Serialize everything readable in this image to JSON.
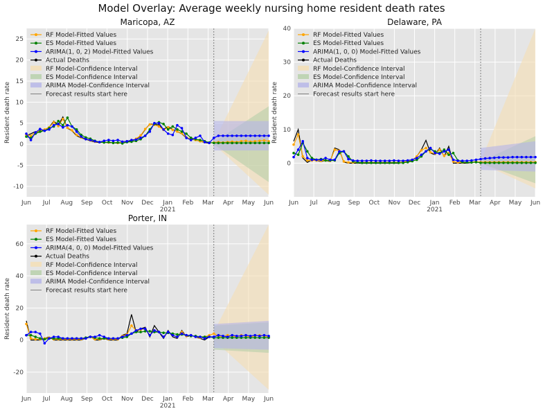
{
  "figure": {
    "title": "Model Overlay: Average weekly nursing home resident death rates"
  },
  "colors": {
    "rf": "#ffa500",
    "es": "#008000",
    "arima": "#0000ff",
    "actual": "#000000",
    "rf_ci": "#f5deb3",
    "es_ci": "#b5cfa8",
    "arima_ci": "#b4b4e8",
    "background": "#e5e5e5",
    "forecast_line": "#666666"
  },
  "chart_data": [
    {
      "type": "line",
      "title": "Maricopa, AZ",
      "ylabel": "Resident death rate",
      "xlabel": "",
      "ylim": [
        -12.5,
        27.5
      ],
      "yticks": [
        -10,
        -5,
        0,
        5,
        10,
        15,
        20,
        25
      ],
      "x_ticks": [
        "Jun",
        "Jul",
        "Aug",
        "Sep",
        "Oct",
        "Nov",
        "Dec",
        "Jan",
        "Feb",
        "Mar",
        "Apr",
        "May",
        "Jun"
      ],
      "x_year_label": "2021",
      "forecast_start_week": 41,
      "legend": [
        "RF Model-Fitted Values",
        "ES Model-Fitted Values",
        "ARIMA(1, 0, 2) Model-Fitted Values",
        "Actual Deaths",
        "RF Model-Confidence Interval",
        "ES Model-Confidence Interval",
        "ARIMA Model-Confidence Interval",
        "Forecast results start here"
      ],
      "legend_position": "upper-left",
      "series": [
        {
          "name": "Actual Deaths",
          "values": [
            2.0,
            2.5,
            3.0,
            2.8,
            3.5,
            4.0,
            5.5,
            4.5,
            6.5,
            3.8,
            3.2,
            2.0,
            1.5,
            1.2,
            0.8,
            0.5,
            0.4,
            0.5,
            0.3,
            0.4,
            0.2,
            0.5,
            0.6,
            0.8,
            1.2,
            2.0,
            3.5,
            4.8,
            4.7,
            4.6,
            3.5,
            4.2,
            3.5,
            3.0,
            2.5,
            1.5,
            1.2,
            1.0,
            0.7,
            0.4,
            0.2
          ]
        },
        {
          "name": "RF Model-Fitted Values",
          "values": [
            2.2,
            2.0,
            2.8,
            3.2,
            3.5,
            4.0,
            5.2,
            4.3,
            6.0,
            3.9,
            3.3,
            2.2,
            1.6,
            1.3,
            0.9,
            0.6,
            0.5,
            0.5,
            0.4,
            0.4,
            0.3,
            0.5,
            0.7,
            0.9,
            1.3,
            2.1,
            3.6,
            4.7,
            4.6,
            4.2,
            3.4,
            4.0,
            3.4,
            3.0,
            2.6,
            1.6,
            1.3,
            1.0,
            0.7,
            0.5,
            0.3,
            0.4,
            0.5,
            0.4,
            0.5,
            0.6,
            0.5,
            0.7,
            0.8,
            0.6,
            0.7,
            0.8,
            0.9,
            0.7
          ]
        },
        {
          "name": "ES Model-Fitted Values",
          "values": [
            1.8,
            1.5,
            2.5,
            3.0,
            3.2,
            3.8,
            4.2,
            5.5,
            4.5,
            6.3,
            4.2,
            3.5,
            2.2,
            1.6,
            1.3,
            0.8,
            0.5,
            0.4,
            0.5,
            0.3,
            0.4,
            0.2,
            0.5,
            0.6,
            0.8,
            1.2,
            2.0,
            3.5,
            4.8,
            5.2,
            4.8,
            3.5,
            4.2,
            3.5,
            3.0,
            2.5,
            1.5,
            1.2,
            1.0,
            0.7,
            0.4,
            0.3,
            0.3,
            0.3,
            0.3,
            0.3,
            0.3,
            0.3,
            0.3,
            0.3,
            0.3,
            0.3,
            0.3,
            0.3
          ]
        },
        {
          "name": "ARIMA(1, 0, 2) Model-Fitted Values",
          "values": [
            2.5,
            1.0,
            2.8,
            3.6,
            3.2,
            3.5,
            4.5,
            4.8,
            4.0,
            4.5,
            4.2,
            3.0,
            1.8,
            1.2,
            1.0,
            0.7,
            0.5,
            0.8,
            1.0,
            0.8,
            1.0,
            0.6,
            0.7,
            1.0,
            1.1,
            1.5,
            2.0,
            3.0,
            5.0,
            5.0,
            3.5,
            2.5,
            2.2,
            4.5,
            3.8,
            1.5,
            1.0,
            1.5,
            2.0,
            0.5,
            0.3,
            1.5,
            2.0,
            2.0,
            2.0,
            2.0,
            2.0,
            2.0,
            2.0,
            2.0,
            2.0,
            2.0,
            2.0,
            2.0
          ]
        }
      ],
      "confidence_intervals": [
        {
          "name": "RF Model-Confidence Interval",
          "lower_start": 0.0,
          "lower_end": -12.0,
          "upper_start": 0.5,
          "upper_end": 27.0
        },
        {
          "name": "ES Model-Confidence Interval",
          "lower_start": 0.0,
          "lower_end": -9.0,
          "upper_start": 0.5,
          "upper_end": 9.0
        },
        {
          "name": "ARIMA Model-Confidence Interval",
          "lower_start": -1.5,
          "lower_end": -1.5,
          "upper_start": 5.5,
          "upper_end": 5.5
        }
      ]
    },
    {
      "type": "line",
      "title": "Delaware, PA",
      "ylabel": "Resident death rate",
      "xlabel": "",
      "ylim": [
        -10,
        40
      ],
      "yticks": [
        0,
        10,
        20,
        30,
        40
      ],
      "x_ticks": [
        "Jun",
        "Jul",
        "Aug",
        "Sep",
        "Oct",
        "Nov",
        "Dec",
        "Jan",
        "Feb",
        "Mar",
        "Apr",
        "May",
        "Jun"
      ],
      "x_year_label": "2021",
      "forecast_start_week": 41,
      "legend": [
        "RF Model-Fitted Values",
        "ES Model-Fitted Values",
        "ARIMA(1, 0, 0) Model-Fitted Values",
        "Actual Deaths",
        "RF Model-Confidence Interval",
        "ES Model-Confidence Interval",
        "ARIMA Model-Confidence Interval",
        "Forecast results start here"
      ],
      "legend_position": "upper-left",
      "series": [
        {
          "name": "Actual Deaths",
          "values": [
            6.5,
            10.0,
            1.5,
            0.2,
            1.0,
            0.8,
            0.5,
            0.8,
            0.5,
            4.5,
            4.0,
            0.3,
            0.0,
            0.0,
            0.0,
            0.0,
            0.0,
            0.0,
            0.0,
            0.0,
            0.0,
            0.0,
            0.0,
            0.0,
            0.2,
            0.5,
            0.8,
            2.0,
            4.0,
            6.8,
            3.0,
            2.5,
            4.5,
            2.0,
            5.0,
            0.0,
            0.0,
            0.0,
            0.0,
            0.2,
            0.5
          ]
        },
        {
          "name": "RF Model-Fitted Values",
          "values": [
            5.5,
            8.5,
            2.0,
            0.8,
            0.8,
            0.8,
            0.7,
            0.8,
            0.7,
            4.0,
            3.7,
            0.5,
            0.2,
            0.2,
            0.2,
            0.2,
            0.2,
            0.2,
            0.2,
            0.2,
            0.2,
            0.2,
            0.2,
            0.2,
            0.3,
            0.6,
            0.9,
            2.0,
            3.8,
            4.5,
            3.2,
            2.8,
            4.0,
            2.2,
            3.0,
            0.5,
            0.2,
            0.2,
            0.2,
            0.3,
            0.4,
            0.3,
            0.3,
            0.3,
            0.3,
            0.3,
            0.3,
            0.3,
            0.3,
            0.3,
            0.3,
            0.3,
            0.3,
            0.3
          ]
        },
        {
          "name": "ES Model-Fitted Values",
          "values": [
            3.0,
            2.5,
            6.0,
            3.5,
            1.5,
            1.0,
            1.2,
            0.8,
            0.8,
            0.8,
            3.0,
            3.5,
            2.0,
            0.5,
            0.2,
            0.1,
            0.1,
            0.1,
            0.1,
            0.1,
            0.1,
            0.1,
            0.1,
            0.1,
            0.1,
            0.3,
            0.6,
            1.0,
            2.0,
            3.5,
            4.2,
            3.5,
            3.0,
            4.0,
            2.5,
            3.0,
            0.8,
            0.3,
            0.2,
            0.2,
            0.3,
            0.1,
            0.1,
            0.1,
            0.1,
            0.1,
            0.1,
            0.1,
            0.1,
            0.1,
            0.1,
            0.1,
            0.1,
            0.1
          ]
        },
        {
          "name": "ARIMA(1, 0, 0) Model-Fitted Values",
          "values": [
            1.8,
            4.0,
            6.5,
            1.5,
            1.0,
            1.0,
            1.0,
            1.5,
            1.0,
            1.0,
            3.5,
            3.5,
            1.2,
            0.8,
            0.7,
            0.7,
            0.7,
            0.8,
            0.7,
            0.7,
            0.7,
            0.7,
            0.8,
            0.7,
            0.7,
            0.8,
            1.0,
            1.5,
            2.5,
            3.5,
            4.5,
            3.0,
            2.8,
            3.5,
            4.0,
            1.0,
            0.7,
            0.7,
            0.7,
            0.8,
            1.0,
            1.2,
            1.4,
            1.5,
            1.6,
            1.7,
            1.7,
            1.7,
            1.8,
            1.8,
            1.8,
            1.8,
            1.8,
            1.8
          ]
        }
      ],
      "confidence_intervals": [
        {
          "name": "RF Model-Confidence Interval",
          "lower_start": 0.0,
          "lower_end": -7.5,
          "upper_start": 0.5,
          "upper_end": 40.0
        },
        {
          "name": "ES Model-Confidence Interval",
          "lower_start": 0.0,
          "lower_end": -6.0,
          "upper_start": 0.5,
          "upper_end": 8.0
        },
        {
          "name": "ARIMA Model-Confidence Interval",
          "lower_start": -2.0,
          "lower_end": -2.5,
          "upper_start": 4.5,
          "upper_end": 6.5
        }
      ]
    },
    {
      "type": "line",
      "title": "Porter, IN",
      "ylabel": "Resident death rate",
      "xlabel": "",
      "ylim": [
        -33,
        72
      ],
      "yticks": [
        -20,
        0,
        20,
        40,
        60
      ],
      "x_ticks": [
        "Jun",
        "Jul",
        "Aug",
        "Sep",
        "Oct",
        "Nov",
        "Dec",
        "Jan",
        "Feb",
        "Mar",
        "Apr",
        "May",
        "Jun"
      ],
      "x_year_label": "2021",
      "forecast_start_week": 41,
      "legend": [
        "RF Model-Fitted Values",
        "ES Model-Fitted Values",
        "ARIMA(4, 0, 0) Model-Fitted Values",
        "Actual Deaths",
        "RF Model-Confidence Interval",
        "ES Model-Confidence Interval",
        "ARIMA Model-Confidence Interval",
        "Forecast results start here"
      ],
      "legend_position": "upper-left",
      "series": [
        {
          "name": "Actual Deaths",
          "values": [
            12.0,
            0.0,
            0.0,
            0.0,
            1.0,
            2.0,
            0.0,
            0.0,
            0.0,
            0.0,
            0.0,
            0.0,
            0.0,
            1.0,
            2.5,
            0.0,
            0.0,
            1.0,
            0.0,
            0.0,
            0.0,
            3.0,
            4.0,
            16.0,
            5.0,
            7.0,
            8.0,
            2.0,
            9.0,
            5.0,
            1.0,
            6.0,
            2.0,
            1.0,
            6.0,
            2.0,
            3.0,
            2.0,
            1.0,
            0.0,
            2.0
          ]
        },
        {
          "name": "RF Model-Fitted Values",
          "values": [
            10.0,
            1.0,
            0.5,
            0.5,
            1.0,
            1.5,
            0.5,
            0.5,
            0.5,
            0.5,
            0.5,
            0.5,
            0.5,
            1.0,
            2.0,
            0.5,
            0.5,
            1.0,
            0.5,
            0.5,
            0.5,
            2.5,
            3.5,
            9.0,
            6.0,
            6.5,
            7.0,
            3.0,
            6.0,
            5.0,
            2.0,
            5.0,
            3.0,
            2.0,
            5.0,
            2.5,
            3.0,
            2.0,
            1.5,
            2.0,
            3.0,
            4.0,
            2.5,
            2.0,
            3.0,
            2.5,
            2.0,
            3.0,
            2.5,
            2.0,
            2.5,
            3.0,
            2.5,
            2.0
          ]
        },
        {
          "name": "ES Model-Fitted Values",
          "values": [
            3.0,
            3.0,
            2.0,
            1.0,
            0.5,
            1.0,
            1.0,
            1.0,
            1.0,
            1.0,
            1.0,
            1.0,
            1.0,
            1.5,
            2.0,
            1.5,
            1.0,
            1.0,
            1.0,
            1.0,
            1.0,
            1.5,
            2.0,
            4.0,
            5.0,
            5.0,
            5.5,
            5.5,
            5.0,
            5.0,
            4.5,
            4.5,
            4.0,
            3.5,
            3.5,
            3.0,
            2.5,
            2.5,
            2.0,
            2.0,
            2.0,
            1.5,
            1.5,
            1.5,
            1.5,
            1.5,
            1.5,
            1.5,
            1.5,
            1.5,
            1.5,
            1.5,
            1.5,
            1.5
          ]
        },
        {
          "name": "ARIMA(4, 0, 0) Model-Fitted Values",
          "values": [
            3.0,
            5.0,
            5.0,
            4.0,
            -2.0,
            1.0,
            2.0,
            2.0,
            1.0,
            1.0,
            1.0,
            1.0,
            1.0,
            1.0,
            2.0,
            2.0,
            3.0,
            2.0,
            1.0,
            1.0,
            1.0,
            2.0,
            3.0,
            4.0,
            6.0,
            7.0,
            7.0,
            3.0,
            6.0,
            5.0,
            2.0,
            5.0,
            3.0,
            2.0,
            4.0,
            3.0,
            3.0,
            2.0,
            2.0,
            1.0,
            2.0,
            2.0,
            3.0,
            2.5,
            2.0,
            3.0,
            2.5,
            2.5,
            3.0,
            2.5,
            3.0,
            2.5,
            3.0,
            2.5
          ]
        }
      ],
      "confidence_intervals": [
        {
          "name": "RF Model-Confidence Interval",
          "lower_start": 0.0,
          "lower_end": -31.0,
          "upper_start": 5.0,
          "upper_end": 72.0
        },
        {
          "name": "ES Model-Confidence Interval",
          "lower_start": -6.0,
          "lower_end": -8.0,
          "upper_start": 9.0,
          "upper_end": 11.0
        },
        {
          "name": "ARIMA Model-Confidence Interval",
          "lower_start": -5.0,
          "lower_end": -6.0,
          "upper_start": 10.0,
          "upper_end": 12.0
        }
      ]
    }
  ]
}
